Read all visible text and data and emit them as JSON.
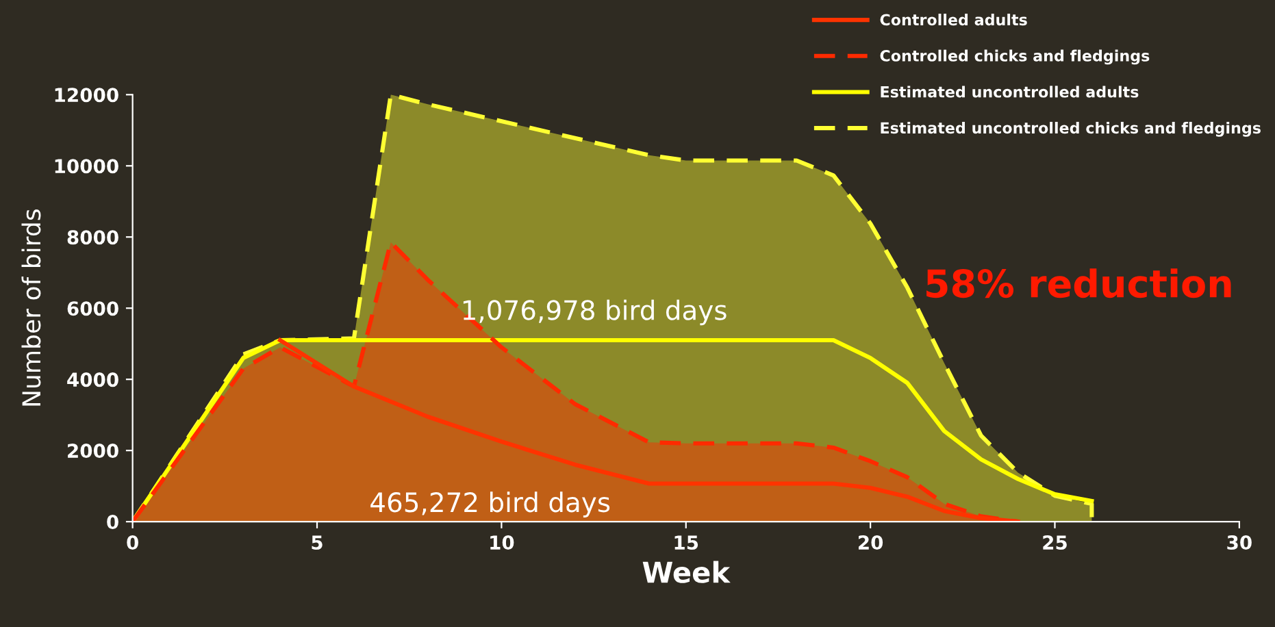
{
  "chart_data": {
    "type": "line",
    "xlabel": "Week",
    "ylabel": "Number of birds",
    "xlim": [
      0,
      30
    ],
    "xticks": [
      0,
      5,
      10,
      15,
      20,
      25,
      30
    ],
    "ylim": [
      0,
      12000
    ],
    "yticks": [
      0,
      2000,
      4000,
      6000,
      8000,
      10000,
      12000
    ],
    "grid": false,
    "legend": "top right",
    "series": [
      {
        "name": "Estimated uncontrolled chicks and fledgings",
        "type": "area",
        "line_style": "dashed",
        "color": "#ffff33",
        "x": [
          0,
          3,
          4,
          6,
          7,
          8,
          14,
          15,
          18,
          19,
          20,
          21,
          22,
          23,
          24,
          25,
          26,
          26
        ],
        "values": [
          0,
          4700,
          5100,
          5150,
          12000,
          11730,
          10300,
          10150,
          10150,
          9730,
          8380,
          6580,
          4460,
          2420,
          1380,
          730,
          500,
          0
        ]
      },
      {
        "name": "Estimated uncontrolled adults",
        "line_style": "solid",
        "color": "#ffff00",
        "x": [
          0,
          3,
          4,
          19,
          20,
          21,
          22,
          23,
          24,
          25,
          26
        ],
        "values": [
          0,
          4600,
          5100,
          5100,
          4600,
          3900,
          2550,
          1750,
          1200,
          770,
          580
        ]
      },
      {
        "name": "Controlled chicks and fledgings",
        "type": "area",
        "line_style": "dashed",
        "color": "#ff2a00",
        "x": [
          0,
          3,
          4,
          6,
          7,
          8,
          10,
          12,
          14,
          15,
          18,
          19,
          20,
          21,
          22,
          23,
          24
        ],
        "values": [
          0,
          4300,
          4900,
          3800,
          7850,
          6800,
          4900,
          3300,
          2230,
          2200,
          2200,
          2080,
          1700,
          1250,
          500,
          150,
          0
        ]
      },
      {
        "name": "Controlled adults",
        "line_style": "solid",
        "color": "#ff3300",
        "x": [
          4,
          6,
          8,
          10,
          12,
          14,
          19,
          20,
          21,
          22,
          23,
          24
        ],
        "values": [
          5100,
          3800,
          2950,
          2250,
          1600,
          1070,
          1070,
          950,
          700,
          300,
          100,
          0
        ]
      }
    ],
    "annotations": [
      "1,076,978 bird days",
      "465,272 bird days",
      "58% reduction"
    ]
  }
}
